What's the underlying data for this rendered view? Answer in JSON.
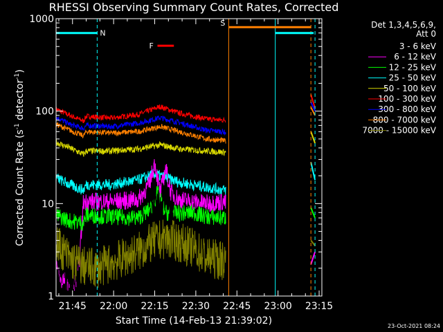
{
  "chart_data": {
    "type": "line",
    "title": "RHESSI Observing Summary Count Rates, Corrected",
    "xlabel": "Start Time (14-Feb-13 21:39:02)",
    "ylabel_main": "Corrected Count Rate (s",
    "ylabel_exp1": "-1",
    "ylabel_mid": " detector",
    "ylabel_exp2": "-1",
    "ylabel_end": ")",
    "y_scale": "log",
    "ylim": [
      1,
      1000
    ],
    "xlim_minutes": [
      0,
      97
    ],
    "x_ticks": [
      {
        "label": "21:45",
        "min": 6
      },
      {
        "label": "22:00",
        "min": 21
      },
      {
        "label": "22:15",
        "min": 36
      },
      {
        "label": "22:30",
        "min": 51
      },
      {
        "label": "22:45",
        "min": 66
      },
      {
        "label": "23:00",
        "min": 81
      },
      {
        "label": "23:15",
        "min": 96
      }
    ],
    "y_ticks": [
      {
        "label": "1",
        "value": 1
      },
      {
        "label": "10",
        "value": 10
      },
      {
        "label": "100",
        "value": 100
      },
      {
        "label": "1000",
        "value": 1000
      }
    ],
    "legend": {
      "position": "top-right",
      "header1": "Det 1,3,4,5,6,9,",
      "header2": "Att 0",
      "entries": [
        {
          "label": "3 - 6 keV",
          "color": "#000000"
        },
        {
          "label": "6 - 12 keV",
          "color": "#ff00ff"
        },
        {
          "label": "12 - 25 keV",
          "color": "#00ff00"
        },
        {
          "label": "25 - 50 keV",
          "color": "#00ffff"
        },
        {
          "label": "50 - 100 keV",
          "color": "#d8d800"
        },
        {
          "label": "100 - 300 keV",
          "color": "#ff0000"
        },
        {
          "label": "300 - 800 keV",
          "color": "#0000ff"
        },
        {
          "label": "800 - 7000 keV",
          "color": "#ff8000"
        },
        {
          "label": "7000 - 15000 keV",
          "color": "#808000"
        }
      ]
    },
    "flags": [
      {
        "label": "N",
        "color": "#00ffff",
        "start_min": 0,
        "end_min": 15,
        "level": 700
      },
      {
        "label": "N",
        "color": "#00ffff",
        "start_min": 80,
        "end_min": 94,
        "level": 700
      },
      {
        "label": "F",
        "color": "#ff0000",
        "start_min": 37,
        "end_min": 43,
        "level": 510
      },
      {
        "label": "S",
        "color": "#ff8000",
        "start_min": 63,
        "end_min": 93,
        "level": 810
      }
    ],
    "night_lines": [
      {
        "min": 15,
        "color": "#00ffff",
        "style": "dashed"
      },
      {
        "min": 94.5,
        "color": "#00ffff",
        "style": "dashed"
      },
      {
        "min": 80,
        "color": "#00ffff",
        "style": "solid"
      }
    ],
    "saa_lines": [
      {
        "min": 63,
        "color": "#ff8000",
        "style": "solid"
      },
      {
        "min": 93,
        "color": "#ff8000",
        "style": "dashed"
      }
    ],
    "series": [
      {
        "name": "100 - 300 keV",
        "color": "#ff0000",
        "noise": 0.03,
        "points": [
          [
            0,
            105
          ],
          [
            5,
            90
          ],
          [
            10,
            78
          ],
          [
            11,
            88
          ],
          [
            20,
            84
          ],
          [
            30,
            92
          ],
          [
            38,
            112
          ],
          [
            45,
            95
          ],
          [
            55,
            82
          ],
          [
            61,
            80
          ],
          [
            62,
            80
          ]
        ],
        "tail": [
          [
            93,
            150
          ],
          [
            94.5,
            108
          ]
        ]
      },
      {
        "name": "300 - 800 keV",
        "color": "#0000ff",
        "noise": 0.03,
        "points": [
          [
            0,
            86
          ],
          [
            5,
            72
          ],
          [
            10,
            65
          ],
          [
            11,
            70
          ],
          [
            20,
            68
          ],
          [
            30,
            74
          ],
          [
            38,
            85
          ],
          [
            45,
            75
          ],
          [
            55,
            62
          ],
          [
            61,
            60
          ],
          [
            62,
            58
          ]
        ],
        "tail": [
          [
            93,
            125
          ],
          [
            94.5,
            100
          ]
        ]
      },
      {
        "name": "800 - 7000 keV",
        "color": "#ff8000",
        "noise": 0.03,
        "points": [
          [
            0,
            72
          ],
          [
            5,
            62
          ],
          [
            10,
            54
          ],
          [
            11,
            60
          ],
          [
            20,
            58
          ],
          [
            30,
            60
          ],
          [
            38,
            68
          ],
          [
            45,
            60
          ],
          [
            55,
            50
          ],
          [
            61,
            48
          ],
          [
            62,
            47
          ]
        ],
        "tail": [
          [
            93,
            110
          ],
          [
            94.5,
            90
          ]
        ]
      },
      {
        "name": "50 - 100 keV",
        "color": "#d8d800",
        "noise": 0.035,
        "points": [
          [
            0,
            46
          ],
          [
            5,
            40
          ],
          [
            10,
            34
          ],
          [
            11,
            37
          ],
          [
            20,
            37
          ],
          [
            30,
            39
          ],
          [
            38,
            43
          ],
          [
            45,
            39
          ],
          [
            55,
            37
          ],
          [
            61,
            36
          ],
          [
            62,
            36
          ]
        ],
        "tail": [
          [
            93,
            60
          ],
          [
            94.5,
            45
          ]
        ]
      },
      {
        "name": "25 - 50 keV",
        "color": "#00ffff",
        "noise": 0.06,
        "points": [
          [
            0,
            19
          ],
          [
            5,
            16
          ],
          [
            10,
            14
          ],
          [
            11,
            16
          ],
          [
            20,
            16
          ],
          [
            30,
            18
          ],
          [
            36,
            21
          ],
          [
            40,
            19
          ],
          [
            45,
            17
          ],
          [
            55,
            15
          ],
          [
            61,
            14
          ],
          [
            62,
            14
          ]
        ],
        "tail": [
          [
            93,
            28
          ],
          [
            94.5,
            18
          ]
        ]
      },
      {
        "name": "6 - 12 keV",
        "color": "#ff00ff",
        "noise": 0.1,
        "points": [
          [
            0,
            2.2
          ],
          [
            2,
            1.5
          ],
          [
            6,
            1.4
          ],
          [
            8,
            1.5
          ],
          [
            10,
            10.5
          ],
          [
            20,
            10.5
          ],
          [
            30,
            11
          ],
          [
            34,
            16
          ],
          [
            36,
            28
          ],
          [
            38,
            13
          ],
          [
            40,
            24
          ],
          [
            42,
            13
          ],
          [
            45,
            11
          ],
          [
            55,
            10
          ],
          [
            61,
            10.5
          ],
          [
            62,
            10
          ]
        ],
        "tail": [
          [
            93,
            2.2
          ],
          [
            94.5,
            3
          ]
        ]
      },
      {
        "name": "12 - 25 keV",
        "color": "#00ff00",
        "noise": 0.09,
        "points": [
          [
            0,
            7.5
          ],
          [
            5,
            6.5
          ],
          [
            10,
            6.2
          ],
          [
            11,
            7.5
          ],
          [
            20,
            7.2
          ],
          [
            30,
            7
          ],
          [
            35,
            9
          ],
          [
            37,
            13
          ],
          [
            40,
            8
          ],
          [
            45,
            7.8
          ],
          [
            50,
            8
          ],
          [
            55,
            7.2
          ],
          [
            61,
            7
          ],
          [
            62,
            7
          ]
        ],
        "tail": [
          [
            93,
            9
          ],
          [
            94.5,
            7
          ]
        ]
      },
      {
        "name": "3 - 6 keV",
        "color": "#000000",
        "noise": 0.2,
        "points": [
          [
            0,
            1.8
          ],
          [
            8,
            1.7
          ],
          [
            15,
            2.2
          ],
          [
            25,
            2.2
          ],
          [
            30,
            2.5
          ],
          [
            34,
            5
          ],
          [
            36,
            11
          ],
          [
            38,
            8
          ],
          [
            40,
            11
          ],
          [
            44,
            4
          ],
          [
            50,
            4
          ],
          [
            58,
            2.2
          ],
          [
            62,
            1.6
          ]
        ],
        "tail": []
      },
      {
        "name": "7000 - 15000 keV",
        "color": "#808000",
        "noise": 0.22,
        "points": [
          [
            0,
            3.8
          ],
          [
            5,
            2.5
          ],
          [
            10,
            2.1
          ],
          [
            15,
            2
          ],
          [
            25,
            2.6
          ],
          [
            30,
            3
          ],
          [
            35,
            3.8
          ],
          [
            40,
            4.2
          ],
          [
            45,
            3.8
          ],
          [
            50,
            3.3
          ],
          [
            55,
            2.6
          ],
          [
            62,
            2.4
          ]
        ],
        "tail": [
          [
            93,
            4
          ],
          [
            94.5,
            3.5
          ]
        ]
      }
    ],
    "footer_date": "23-Oct-2021 08:24"
  }
}
